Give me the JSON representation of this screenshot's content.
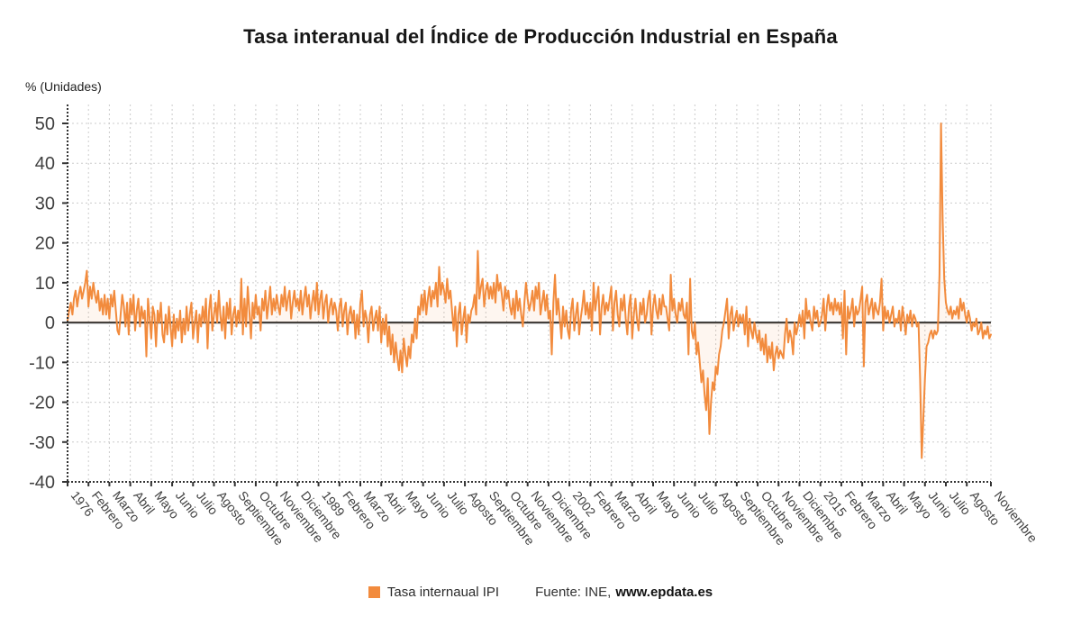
{
  "title": "Tasa interanual del Índice de Producción Industrial en España",
  "y_axis_label": "% (Unidades)",
  "legend": {
    "series_label": "Tasa internaual IPI",
    "source_prefix": "Fuente: INE,",
    "source_link": "www.epdata.es"
  },
  "colors": {
    "accent": "#F28B3D",
    "area_fill": "rgba(242,139,61,0.08)",
    "grid": "#CCCCCC",
    "zero_line": "#3D3D3D",
    "axis": "#333333",
    "tick_text": "#404040"
  },
  "chart_data": {
    "type": "line",
    "series_name": "Tasa internaual IPI",
    "x_start": "1976-01",
    "x_end": "2023-11",
    "x_unit": "month",
    "ylim": [
      -40,
      50
    ],
    "y_ticks": [
      50,
      40,
      30,
      20,
      10,
      0,
      -10,
      -20,
      -30,
      -40
    ],
    "grid": true,
    "legend_position": "bottom",
    "x_tick_labels": [
      "1976",
      "Febrero",
      "Marzo",
      "Abril",
      "Mayo",
      "Junio",
      "Julio",
      "Agosto",
      "Septiembre",
      "Octubre",
      "Noviembre",
      "Diciembre",
      "1989",
      "Febrero",
      "Marzo",
      "Abril",
      "Mayo",
      "Junio",
      "Julio",
      "Agosto",
      "Septiembre",
      "Octubre",
      "Noviembre",
      "Diciembre",
      "2002",
      "Febrero",
      "Marzo",
      "Abril",
      "Mayo",
      "Junio",
      "Julio",
      "Agosto",
      "Septiembre",
      "Octubre",
      "Noviembre",
      "Diciembre",
      "2015",
      "Febrero",
      "Marzo",
      "Abril",
      "Mayo",
      "Junio",
      "Julio",
      "Agosto",
      "Noviembre"
    ],
    "x_tick_indices": [
      0,
      13,
      26,
      39,
      52,
      65,
      78,
      91,
      104,
      117,
      130,
      143,
      156,
      169,
      182,
      195,
      208,
      221,
      234,
      247,
      260,
      273,
      286,
      299,
      312,
      325,
      338,
      351,
      364,
      377,
      390,
      403,
      416,
      429,
      442,
      455,
      468,
      481,
      494,
      507,
      520,
      533,
      546,
      559,
      574
    ],
    "values_by_year": {
      "1976": [
        0.5,
        3,
        5,
        2,
        6,
        8,
        4,
        7,
        9,
        6,
        8,
        10
      ],
      "1977": [
        13,
        4,
        9,
        6,
        10,
        7,
        5,
        8,
        3,
        6,
        2,
        7
      ],
      "1978": [
        2,
        6,
        1,
        7,
        4,
        8,
        3,
        -2,
        -3,
        2,
        7,
        4
      ],
      "1979": [
        -1,
        5,
        -3,
        6,
        2,
        7,
        -2,
        3,
        6,
        -1,
        4,
        1
      ],
      "1980": [
        3,
        -8.5,
        6,
        1,
        -4,
        4,
        2,
        -6,
        3,
        0,
        5,
        -3
      ],
      "1981": [
        -5,
        2,
        -3,
        4,
        -1,
        -6,
        2,
        -4,
        1,
        -2,
        3,
        -5
      ],
      "1982": [
        1,
        -3,
        4,
        -2,
        2,
        5,
        -4,
        0,
        3,
        -5,
        2,
        -1
      ],
      "1983": [
        4,
        0,
        6,
        -6.5,
        3,
        7,
        -2,
        2,
        5,
        0,
        8,
        2
      ],
      "1984": [
        -2,
        4,
        -4,
        5,
        1,
        6,
        -3,
        2,
        4,
        -1,
        3,
        0
      ],
      "1985": [
        11,
        -3,
        6,
        -1,
        9,
        3,
        -4,
        5,
        1,
        7,
        2,
        4
      ],
      "1986": [
        -2,
        6,
        3,
        8,
        1,
        5,
        9,
        2,
        6,
        3,
        7,
        4
      ],
      "1987": [
        2,
        7,
        4,
        9,
        3,
        6,
        8,
        1,
        5,
        8,
        4,
        6
      ],
      "1988": [
        3,
        8,
        2,
        6,
        9,
        4,
        7,
        1,
        5,
        8,
        3,
        10
      ],
      "1989": [
        2,
        6,
        8,
        1,
        5,
        7,
        0,
        4,
        6,
        2,
        5,
        3
      ],
      "1990": [
        -2,
        4,
        6,
        -1,
        3,
        5,
        -3,
        2,
        4,
        0,
        3,
        -4
      ],
      "1991": [
        2,
        -3,
        5,
        8,
        -1,
        3,
        1,
        -5,
        2,
        4,
        -2,
        1
      ],
      "1992": [
        3,
        -2,
        4,
        -5,
        1,
        -3,
        2,
        -6,
        -1,
        -8,
        -3,
        -10
      ],
      "1993": [
        -5,
        -9,
        -12,
        -7,
        -12.5,
        -4,
        -8,
        -11,
        -6,
        -9,
        -3,
        -5
      ],
      "1994": [
        1,
        -4,
        4,
        2,
        7,
        3,
        8,
        2,
        6,
        9,
        4,
        8
      ],
      "1995": [
        6,
        10,
        4,
        14,
        7,
        10,
        8,
        5,
        11,
        6,
        8,
        3
      ],
      "1996": [
        -2,
        4,
        -6,
        2,
        5,
        -3,
        1,
        4,
        -5,
        2,
        0,
        3
      ],
      "1997": [
        4,
        7,
        2,
        18,
        6,
        9,
        11,
        4,
        8,
        10,
        6,
        9
      ],
      "1998": [
        6,
        10,
        5,
        12,
        8,
        10,
        7,
        3,
        9,
        6,
        8,
        4
      ],
      "1999": [
        2,
        6,
        1,
        8,
        3,
        6,
        2,
        -1,
        5,
        10,
        6,
        3
      ],
      "2000": [
        5,
        8,
        3,
        9,
        6,
        10,
        2,
        5,
        8,
        3,
        7,
        1
      ],
      "2001": [
        3,
        -8,
        5,
        12,
        2,
        6,
        1,
        -4,
        4,
        -1,
        3,
        -2
      ],
      "2002": [
        -4,
        3,
        6,
        -2,
        2,
        5,
        -3,
        1,
        4,
        8,
        2,
        5
      ],
      "2003": [
        1,
        5,
        -2,
        10,
        3,
        6,
        9,
        -3,
        4,
        7,
        2,
        5
      ],
      "2004": [
        3,
        6,
        9,
        -2,
        5,
        8,
        2,
        -1,
        6,
        3,
        7,
        1
      ],
      "2005": [
        -3,
        4,
        7,
        -4,
        2,
        6,
        1,
        -2,
        5,
        2,
        6,
        0
      ],
      "2006": [
        2,
        6,
        8,
        -3,
        4,
        7,
        3,
        1,
        6,
        2,
        7,
        4
      ],
      "2007": [
        4,
        1,
        -2,
        12,
        3,
        6,
        2,
        0,
        5,
        3,
        6,
        2
      ],
      "2008": [
        1,
        5,
        -8,
        11,
        -2,
        -4,
        0,
        -8,
        -5,
        -10,
        -15,
        -12
      ],
      "2009": [
        -18,
        -22,
        -14,
        -28,
        -20,
        -15,
        -17,
        -11,
        -13,
        -8,
        -6,
        -2
      ],
      "2010": [
        0,
        3,
        6,
        -4,
        2,
        4,
        -2,
        1,
        3,
        -1,
        2,
        0
      ],
      "2011": [
        2,
        -3,
        4,
        -6,
        1,
        -2,
        -4,
        0,
        -3,
        -5,
        -2,
        -7
      ],
      "2012": [
        -4,
        -8,
        -3,
        -10,
        -6,
        -9,
        -5,
        -12,
        -8,
        -6,
        -9,
        -7
      ],
      "2013": [
        -8,
        -9,
        -3,
        1,
        -5,
        -2,
        -4,
        -8,
        0,
        -3,
        -1,
        2
      ],
      "2014": [
        -1,
        3,
        -4,
        6,
        1,
        3,
        0,
        -2,
        4,
        1,
        3,
        -1
      ],
      "2015": [
        0,
        2,
        6,
        -2,
        4,
        7,
        3,
        5,
        2,
        6,
        3,
        5
      ],
      "2016": [
        2,
        5,
        -4,
        8,
        -8,
        4,
        1,
        3,
        6,
        -1,
        4,
        2
      ],
      "2017": [
        3,
        6,
        9,
        -11,
        5,
        7,
        2,
        4,
        6,
        1,
        5,
        3
      ],
      "2018": [
        2,
        5,
        11,
        -2,
        4,
        1,
        3,
        0,
        2,
        4,
        -1,
        1
      ],
      "2019": [
        0,
        3,
        -2,
        4,
        1,
        -3,
        2,
        0,
        3,
        -1,
        2,
        1
      ],
      "2020": [
        -1,
        0,
        -14,
        -34,
        -24,
        -14,
        -6,
        -5,
        -3,
        -2,
        -4,
        -2
      ],
      "2021": [
        -3,
        -2,
        12,
        50,
        26,
        11,
        5,
        3,
        2,
        4,
        1,
        3
      ],
      "2022": [
        2,
        4,
        1,
        6,
        3,
        5,
        2,
        0,
        3,
        1,
        -2,
        0
      ],
      "2023": [
        -1,
        1,
        -3,
        -2,
        0,
        -4,
        -2,
        -3,
        -1,
        -4,
        -3
      ]
    }
  }
}
